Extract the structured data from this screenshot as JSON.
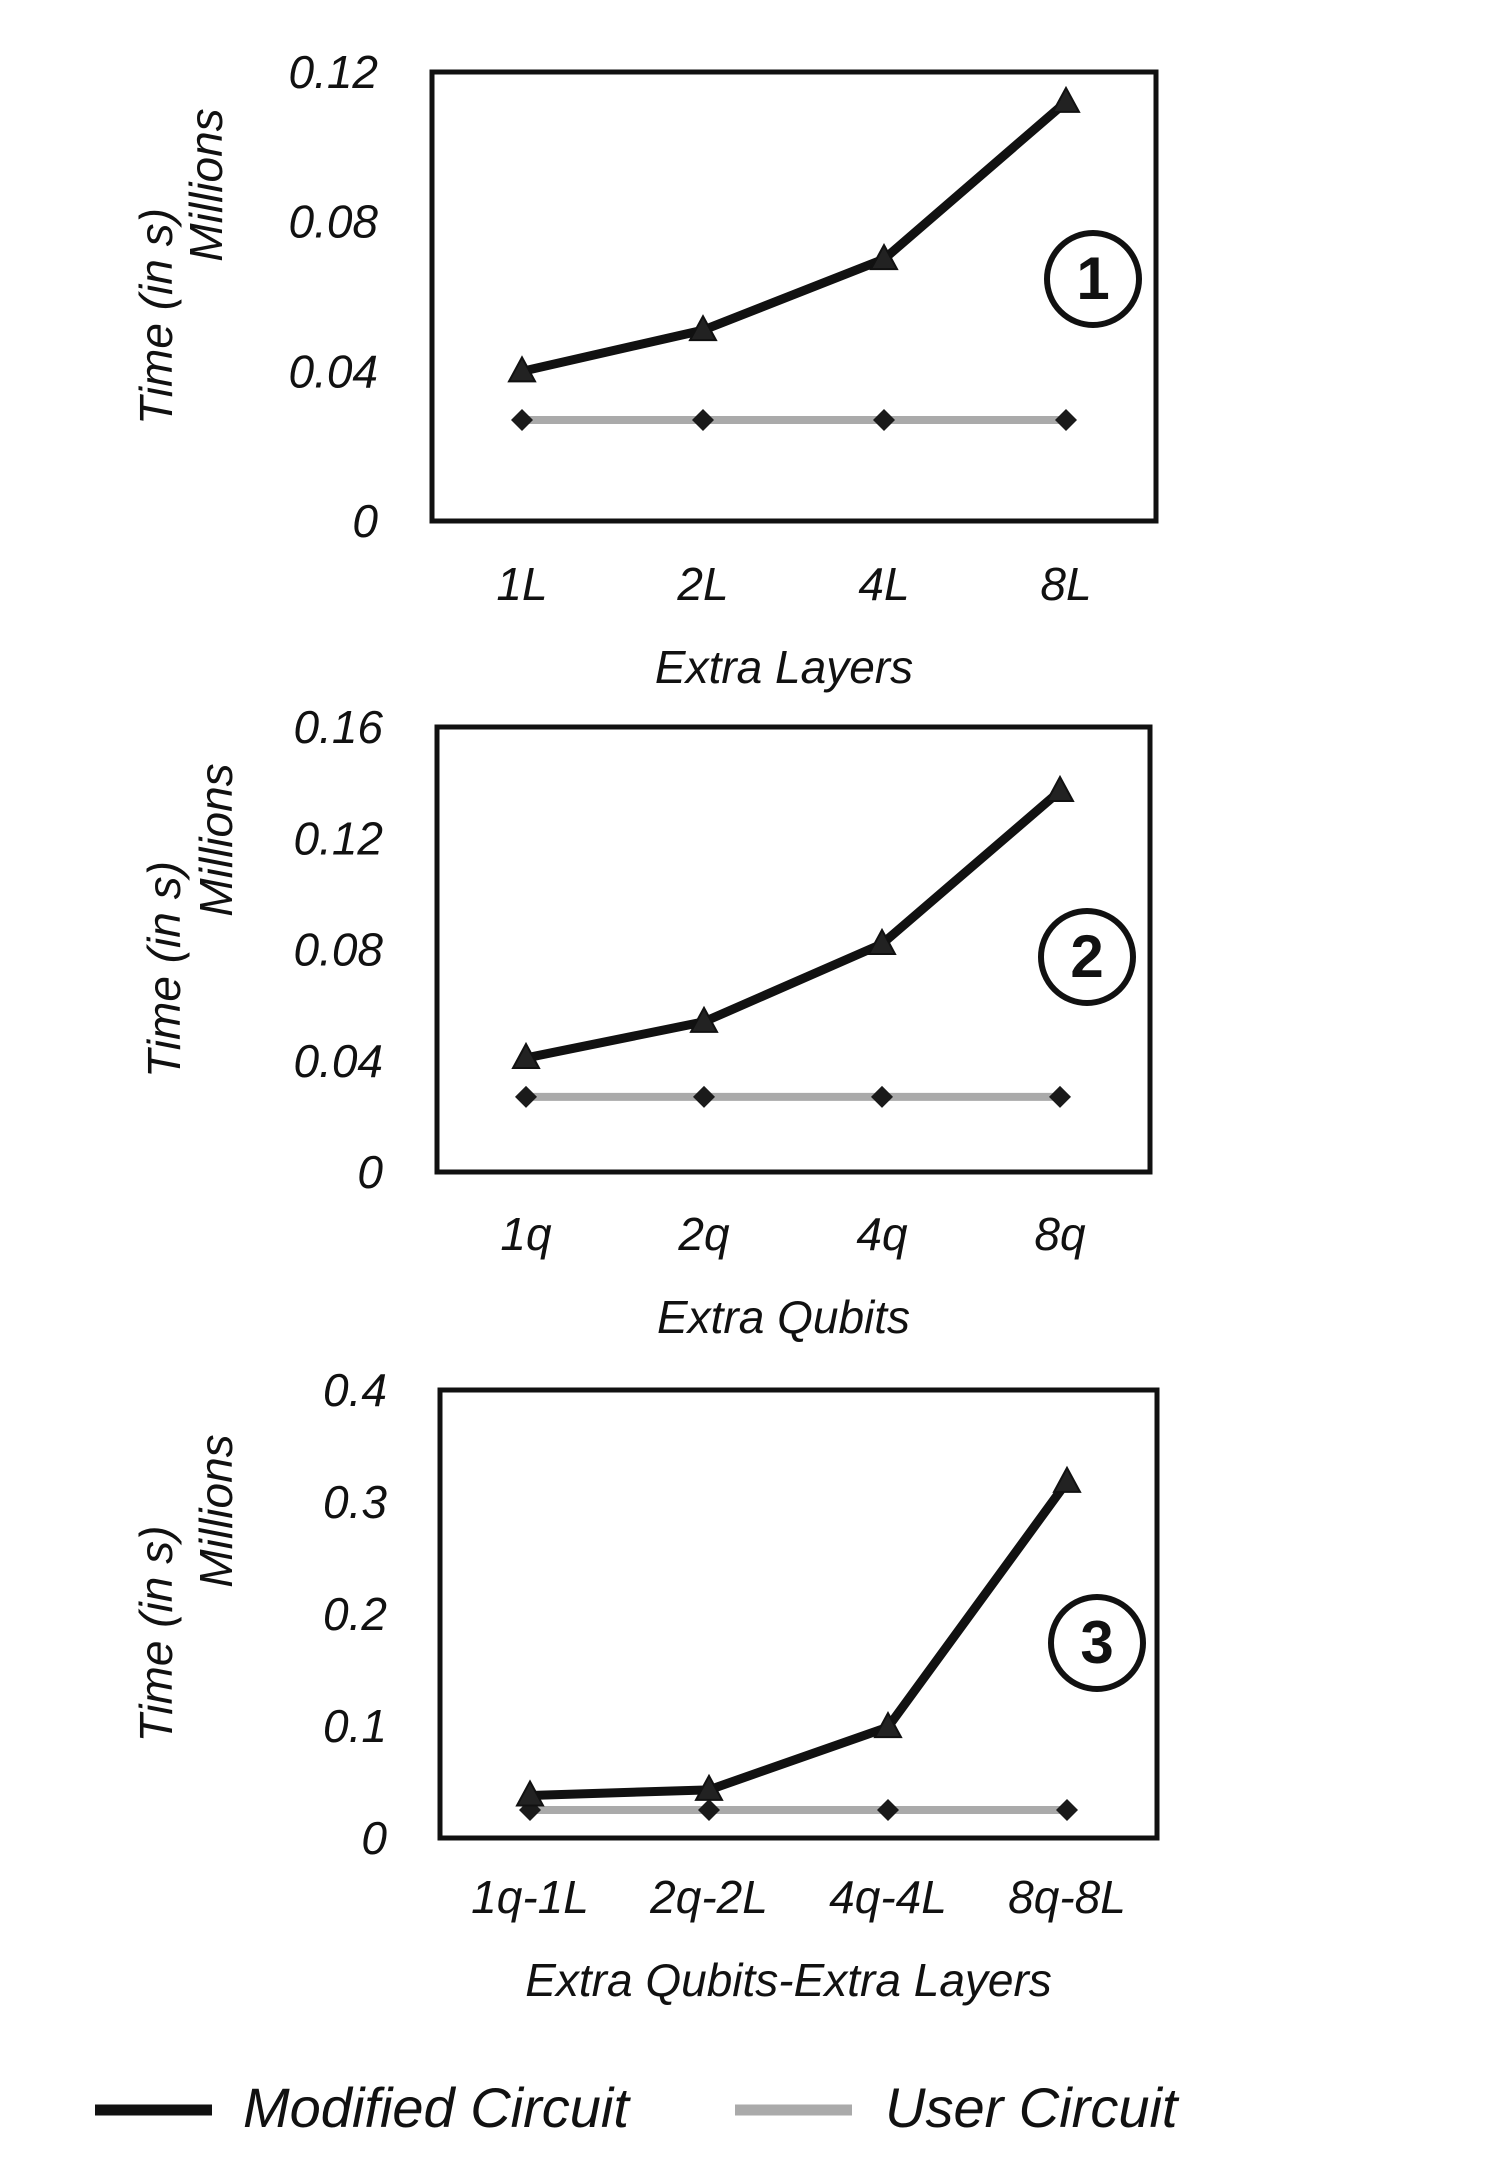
{
  "legend": {
    "modified_label": "Modified Circuit",
    "user_label": "User Circuit"
  },
  "colors": {
    "modified": "#111111",
    "user": "#aaaaaa",
    "frame": "#111111"
  },
  "chart_data": [
    {
      "type": "line",
      "badge": "1",
      "ylabel": "Time (in s)",
      "yunit": "Millions",
      "xlabel": "Extra Layers",
      "categories": [
        "1L",
        "2L",
        "4L",
        "8L"
      ],
      "ylim": [
        0,
        0.12
      ],
      "yticks": [
        "0",
        "0.04",
        "0.08",
        "0.12"
      ],
      "series": [
        {
          "name": "Modified Circuit",
          "values": [
            0.04,
            0.051,
            0.07,
            0.112
          ]
        },
        {
          "name": "User Circuit",
          "values": [
            0.027,
            0.027,
            0.027,
            0.027
          ]
        }
      ]
    },
    {
      "type": "line",
      "badge": "2",
      "ylabel": "Time (in s)",
      "yunit": "Millions",
      "xlabel": "Extra Qubits",
      "categories": [
        "1q",
        "2q",
        "4q",
        "8q"
      ],
      "ylim": [
        0,
        0.16
      ],
      "yticks": [
        "0",
        "0.04",
        "0.08",
        "0.12",
        "0.16"
      ],
      "series": [
        {
          "name": "Modified Circuit",
          "values": [
            0.041,
            0.054,
            0.082,
            0.137
          ]
        },
        {
          "name": "User Circuit",
          "values": [
            0.027,
            0.027,
            0.027,
            0.027
          ]
        }
      ]
    },
    {
      "type": "line",
      "badge": "3",
      "ylabel": "Time (in s)",
      "yunit": "Millions",
      "xlabel": "Extra Qubits-Extra Layers",
      "categories": [
        "1q-1L",
        "2q-2L",
        "4q-4L",
        "8q-8L"
      ],
      "ylim": [
        0,
        0.4
      ],
      "yticks": [
        "0",
        "0.1",
        "0.2",
        "0.3",
        "0.4"
      ],
      "series": [
        {
          "name": "Modified Circuit",
          "values": [
            0.038,
            0.043,
            0.099,
            0.318
          ]
        },
        {
          "name": "User Circuit",
          "values": [
            0.025,
            0.025,
            0.025,
            0.025
          ]
        }
      ]
    }
  ]
}
